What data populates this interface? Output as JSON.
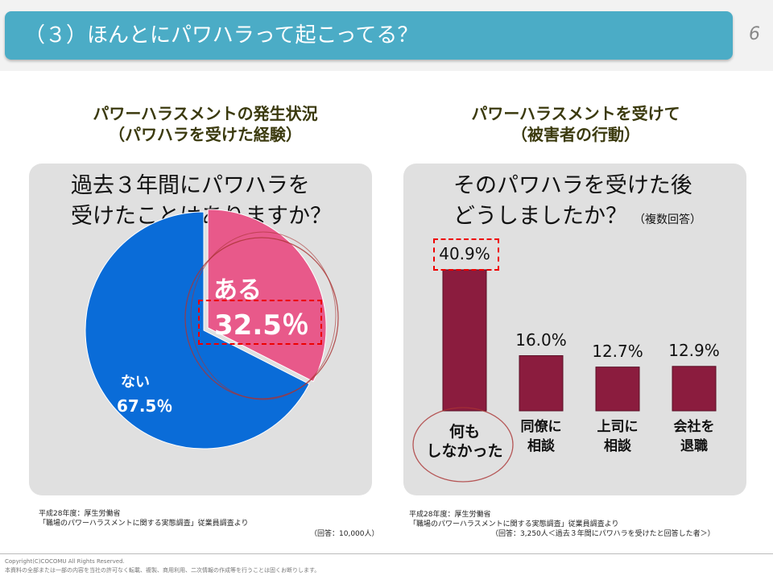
{
  "header": {
    "title": "（３）ほんとにパワハラって起こってる？",
    "page_number": "6",
    "color": "#4bacc6"
  },
  "left": {
    "heading_1": "パワーハラスメントの発生状況",
    "heading_2": "（パワハラを受けた経験）",
    "question_1": "過去３年間にパワハラを",
    "question_2": "受けたことはありますか？",
    "source_1": "平成28年度：厚生労働省",
    "source_2": "「職場のパワーハラスメントに関する実態調査」従業員調査より",
    "respondents": "（回答：10,000人）"
  },
  "right": {
    "heading_1": "パワーハラスメントを受けて",
    "heading_2": "（被害者の行動）",
    "question_1": "そのパワハラを受けた後",
    "question_2": "どうしましたか？",
    "note": "（複数回答）",
    "source_1": "平成28年度：厚生労働省",
    "source_2": "「職場のパワーハラスメントに関する実態調査」従業員調査より",
    "respondents": "（回答：3,250人＜過去３年間にパワハラを受けたと回答した者＞）"
  },
  "chart_data": [
    {
      "type": "pie",
      "slices": [
        {
          "label": "ある",
          "value": 32.5,
          "value_label": "32.5％",
          "color": "#e8598a"
        },
        {
          "label": "ない",
          "value": 67.5,
          "value_label": "67.5％",
          "color": "#0a6cd8"
        }
      ]
    },
    {
      "type": "bar",
      "categories": [
        "何も\nしなかった",
        "同僚に\n相談",
        "上司に\n相談",
        "会社を\n退職"
      ],
      "values": [
        40.9,
        16.0,
        12.7,
        12.9
      ],
      "value_labels": [
        "40.9%",
        "16.0%",
        "12.7%",
        "12.9%"
      ],
      "color": "#8b1c3e"
    }
  ],
  "footer": {
    "copyright": "Copyright(C)COCOMU All Rights Reserved.",
    "notice": "本資料の全部または一部の内容を当社の許可なく転載、複製、商用利用、二次情報の作成等を行うことは固くお断りします。"
  }
}
